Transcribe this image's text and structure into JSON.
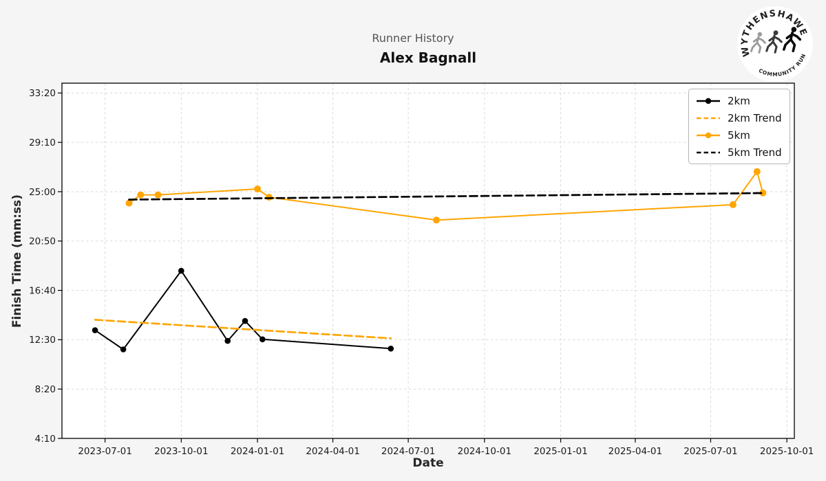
{
  "logo": {
    "top_text": "WYTHENSHAWE",
    "bottom_text": "COMMUNITY RUN"
  },
  "colors": {
    "orange": "#FFA500",
    "black": "#000000",
    "grid": "#d9d9d9",
    "background": "#f5f5f5",
    "plot_background": "#ffffff",
    "suptitle_gray": "#555555"
  },
  "chart_data": {
    "type": "line",
    "suptitle": "Runner History",
    "title": "Alex Bagnall",
    "xlabel": "Date",
    "ylabel": "Finish Time (mm:ss)",
    "grid": true,
    "legend_position": "upper right",
    "x_ticks": [
      "2023-07-01",
      "2023-10-01",
      "2024-01-01",
      "2024-04-01",
      "2024-07-01",
      "2024-10-01",
      "2025-01-01",
      "2025-04-01",
      "2025-07-01",
      "2025-10-01"
    ],
    "y_ticks": [
      "33:20",
      "29:10",
      "25:00",
      "20:50",
      "16:40",
      "12:30",
      "8:20",
      "4:10"
    ],
    "xlim": [
      "2023-05-10",
      "2025-10-10"
    ],
    "ylim_seconds": [
      250,
      2050
    ],
    "series": [
      {
        "name": "2km",
        "color": "#000000",
        "line": "solid",
        "markers": true,
        "marker_radius": 4.3,
        "points": [
          [
            "2023-06-19",
            "13:18"
          ],
          [
            "2023-07-23",
            "11:41"
          ],
          [
            "2023-10-01",
            "18:19"
          ],
          [
            "2023-11-26",
            "12:24"
          ],
          [
            "2023-12-17",
            "14:05"
          ],
          [
            "2024-01-07",
            "12:32"
          ],
          [
            "2024-06-10",
            "11:45"
          ]
        ]
      },
      {
        "name": "2km Trend",
        "color": "#FFA500",
        "line": "dashed",
        "markers": false,
        "points": [
          [
            "2023-06-19",
            "14:11"
          ],
          [
            "2024-06-10",
            "12:37"
          ]
        ]
      },
      {
        "name": "5km",
        "color": "#FFA500",
        "line": "solid",
        "markers": true,
        "marker_radius": 5,
        "points": [
          [
            "2023-07-30",
            "24:02"
          ],
          [
            "2023-08-13",
            "24:44"
          ],
          [
            "2023-09-03",
            "24:44"
          ],
          [
            "2024-01-01",
            "25:14"
          ],
          [
            "2024-01-15",
            "24:32"
          ],
          [
            "2024-08-04",
            "22:36"
          ],
          [
            "2025-07-28",
            "23:54"
          ],
          [
            "2025-08-26",
            "26:42"
          ],
          [
            "2025-09-02",
            "24:54"
          ]
        ]
      },
      {
        "name": "5km Trend",
        "color": "#000000",
        "line": "dashed",
        "markers": false,
        "points": [
          [
            "2023-07-30",
            "24:20"
          ],
          [
            "2025-09-02",
            "24:53"
          ]
        ]
      }
    ]
  }
}
